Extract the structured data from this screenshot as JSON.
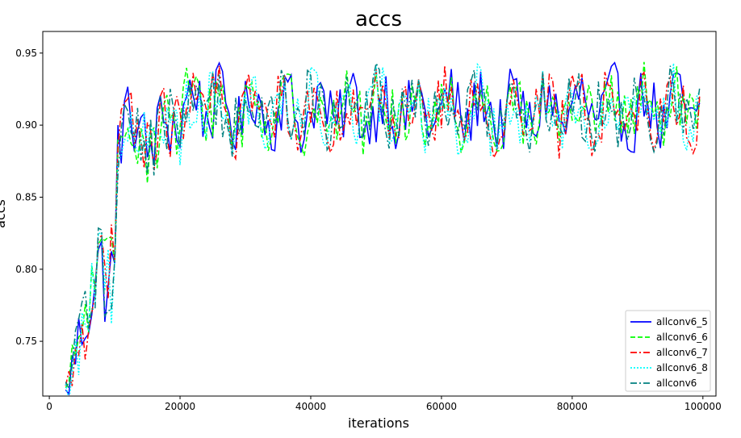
{
  "chart_data": {
    "type": "line",
    "title": "accs",
    "xlabel": "iterations",
    "ylabel": "accs",
    "xlim": [
      -1000,
      102000
    ],
    "ylim": [
      0.712,
      0.965
    ],
    "xticks": [
      0,
      20000,
      40000,
      60000,
      80000,
      100000
    ],
    "xtick_labels": [
      "0",
      "20000",
      "40000",
      "60000",
      "80000",
      "100000"
    ],
    "yticks": [
      0.75,
      0.8,
      0.85,
      0.9,
      0.95
    ],
    "ytick_labels": [
      "0.75",
      "0.80",
      "0.85",
      "0.90",
      "0.95"
    ],
    "grid": false,
    "legend_position": "lower-right",
    "x_start": 2500,
    "x_end": 99500,
    "x_step": 500,
    "series": [
      {
        "name": "allconv6_5",
        "color": "#0000ff",
        "style": "solid"
      },
      {
        "name": "allconv6_6",
        "color": "#00ff00",
        "style": "dashed"
      },
      {
        "name": "allconv6_7",
        "color": "#ff0000",
        "style": "dashdot"
      },
      {
        "name": "allconv6_8",
        "color": "#00ffff",
        "style": "dotted"
      },
      {
        "name": "allconv6",
        "color": "#008080",
        "style": "dashdot"
      }
    ],
    "approx_profile": {
      "description": "approximate mean accuracy envelope read from axes",
      "x": [
        2500,
        5000,
        7500,
        10000,
        10500,
        12500,
        15000,
        17500,
        20000,
        22500,
        25000,
        100000
      ],
      "mean": [
        0.712,
        0.76,
        0.8,
        0.79,
        0.89,
        0.91,
        0.88,
        0.905,
        0.895,
        0.925,
        0.91,
        0.91
      ],
      "amplitude": [
        0.01,
        0.03,
        0.035,
        0.04,
        0.025,
        0.025,
        0.03,
        0.025,
        0.025,
        0.02,
        0.022,
        0.022
      ],
      "cycle_period": 5000
    }
  }
}
